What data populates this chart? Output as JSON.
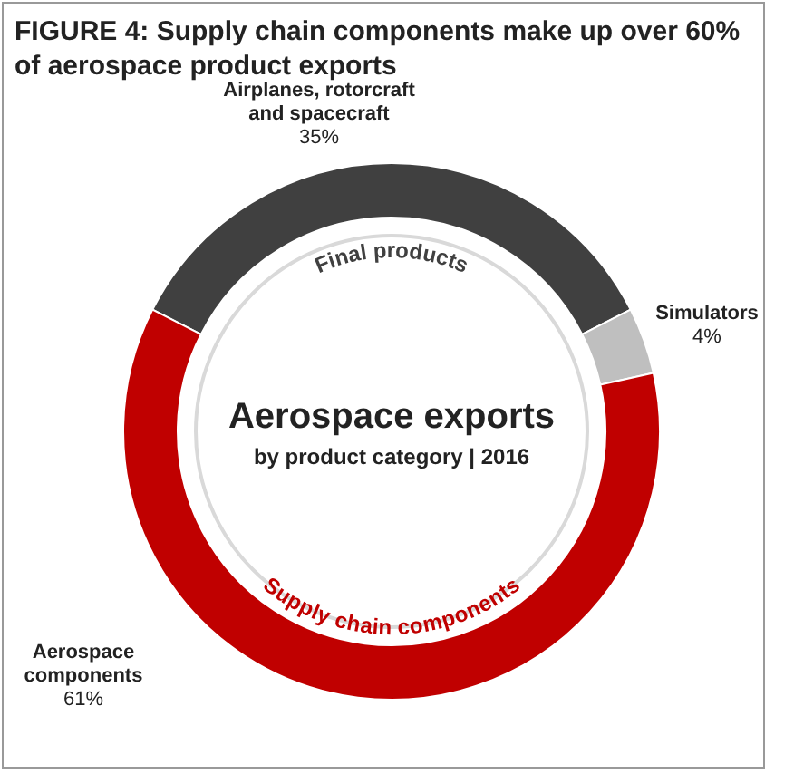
{
  "chart_data": {
    "type": "donut",
    "title": "FIGURE 4:  Supply chain components make up over 60% of aerospace product exports",
    "categories": [
      "Airplanes, rotorcraft and spacecraft",
      "Simulators",
      "Aerospace components"
    ],
    "values": [
      35,
      4,
      61
    ],
    "colors": [
      "#404040",
      "#bfbfbf",
      "#c00000"
    ],
    "value_labels": [
      "35%",
      "4%",
      "61%"
    ],
    "annotations": [
      "Aerospace exports",
      "by product category | 2016",
      "Final products",
      "Supply chain components"
    ]
  }
}
